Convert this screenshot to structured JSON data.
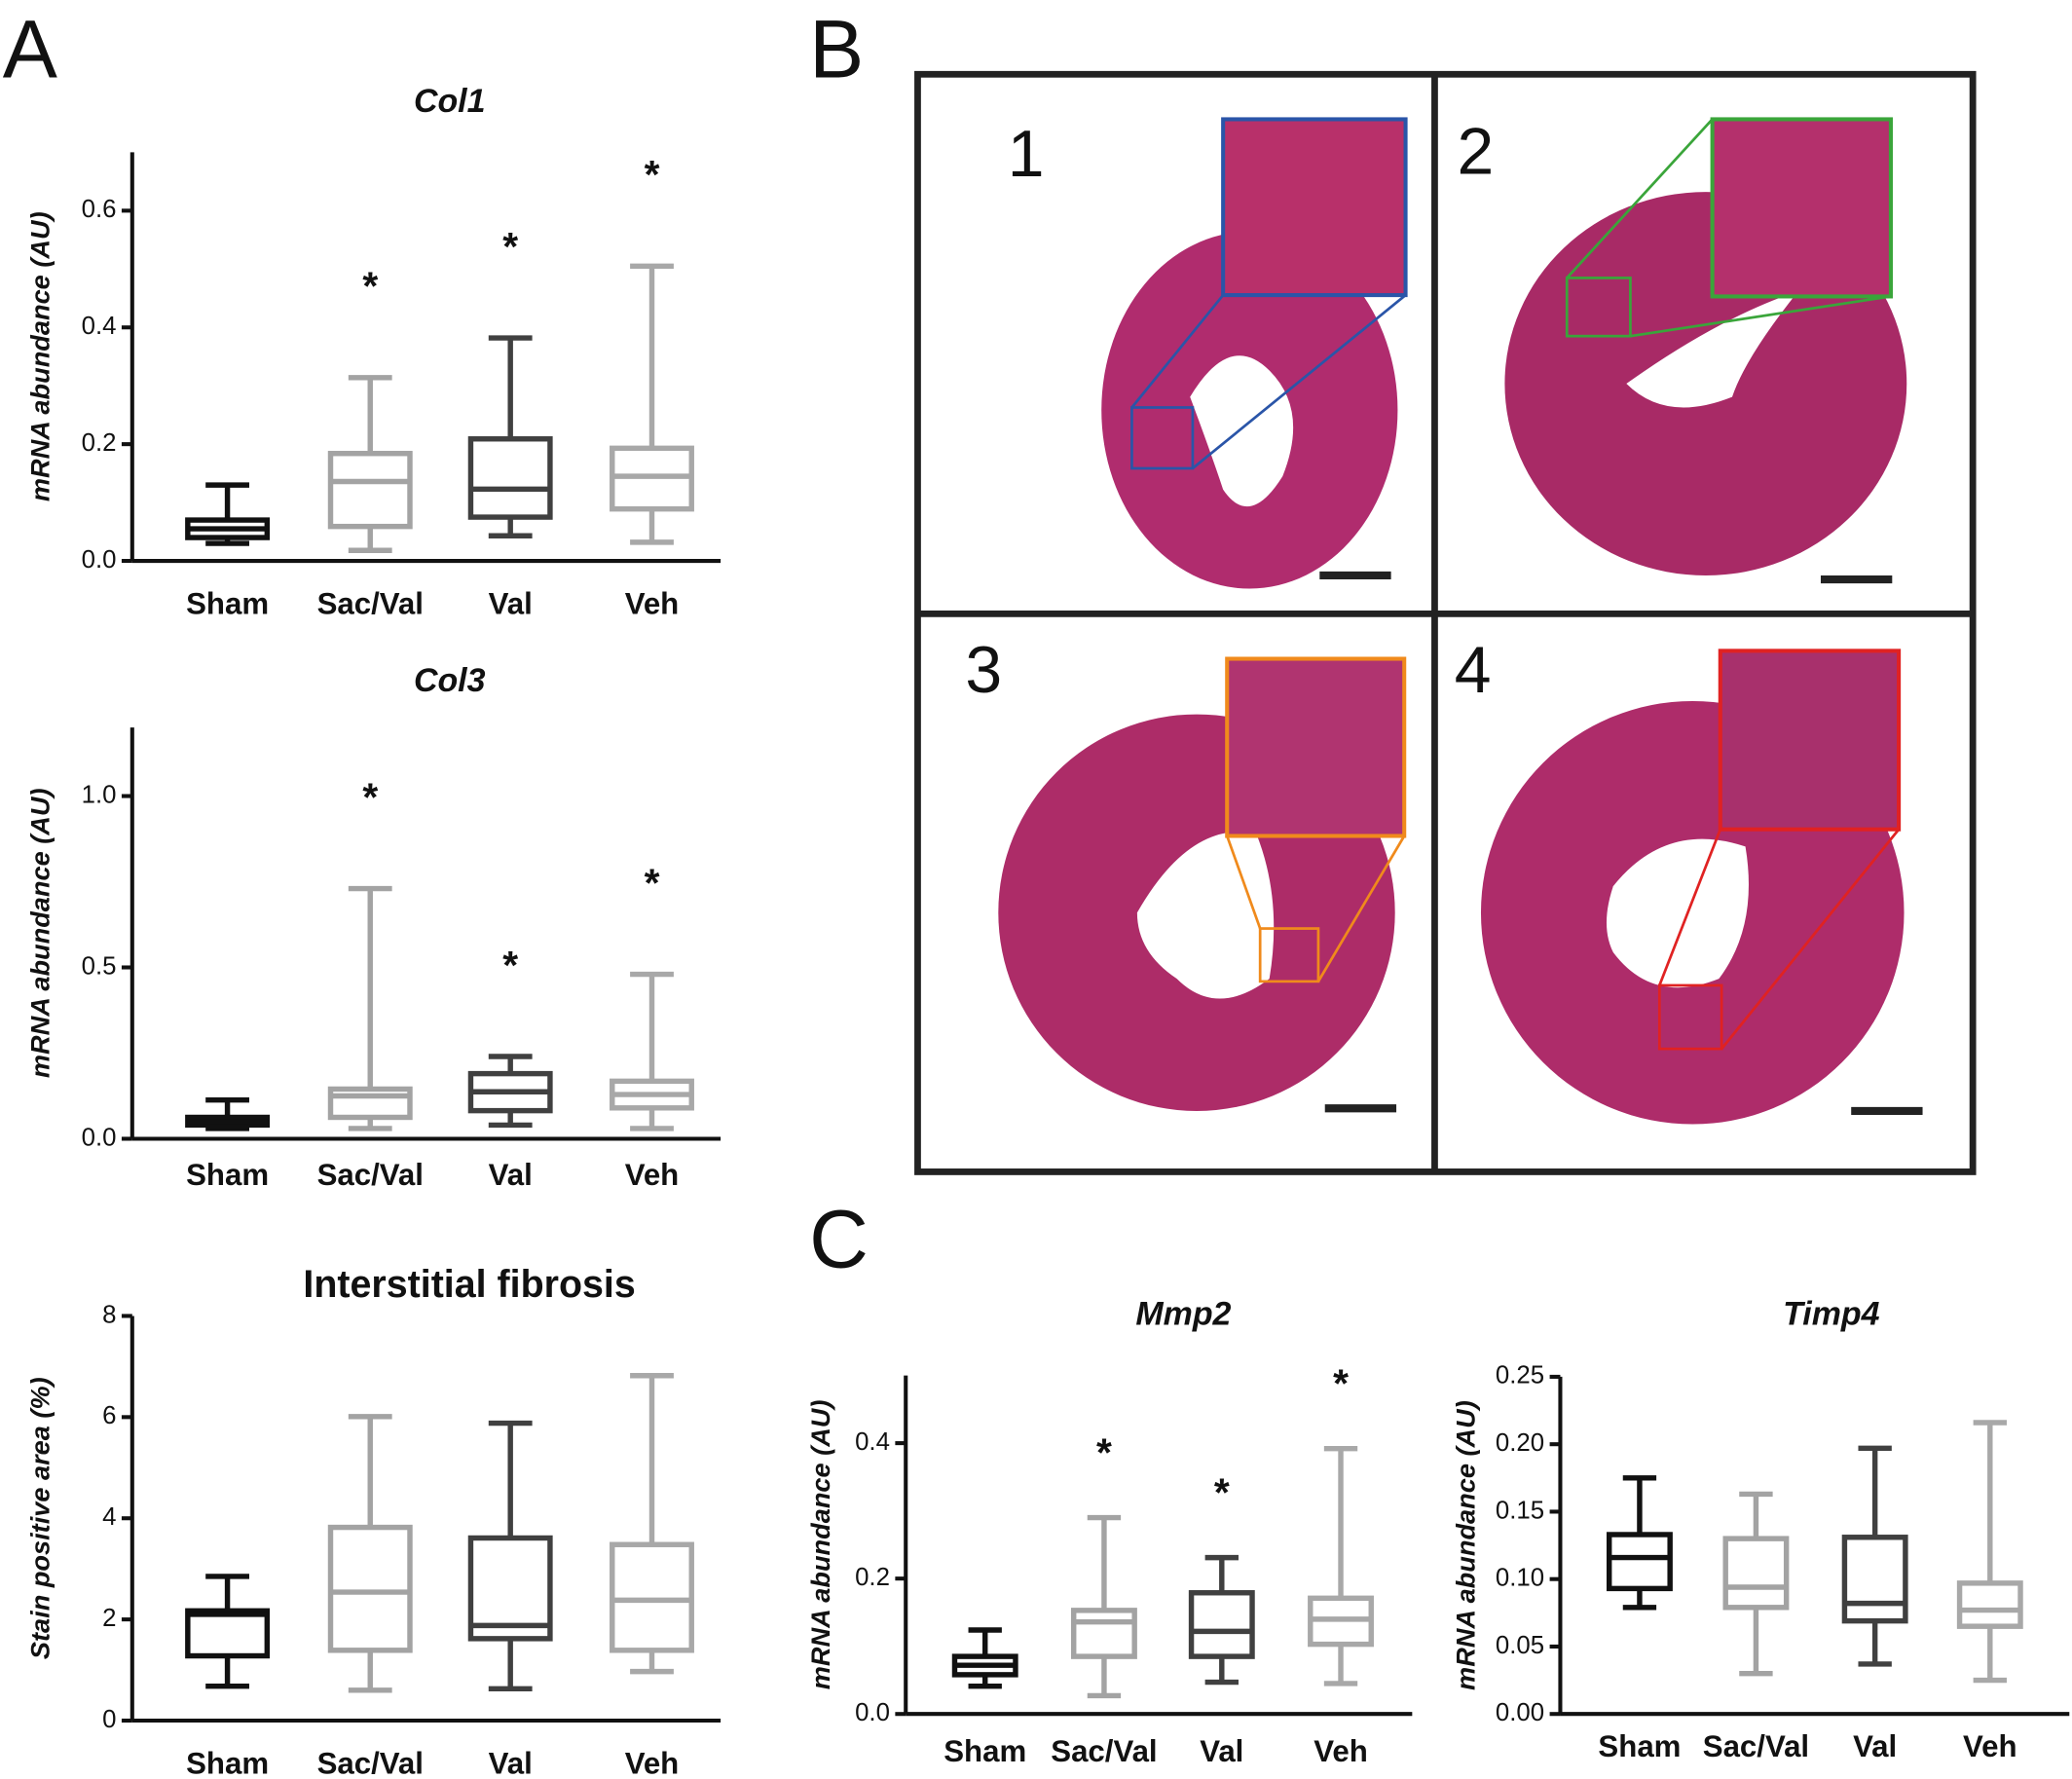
{
  "panel_labels": [
    "A",
    "B",
    "C"
  ],
  "image_labels": [
    "1",
    "2",
    "3",
    "4"
  ],
  "chart_data": [
    {
      "type": "box",
      "title": "Col1",
      "y_label": "mRNA abundance (AU)",
      "categories": [
        "Sham",
        "Sac/Val",
        "Val",
        "Veh"
      ],
      "colors": [
        "#111111",
        "#a3a3a3",
        "#404040",
        "#a8a8a8"
      ],
      "boxes": [
        {
          "min": 0.03,
          "q1": 0.04,
          "median": 0.055,
          "q3": 0.07,
          "max": 0.13
        },
        {
          "min": 0.018,
          "q1": 0.059,
          "median": 0.136,
          "q3": 0.184,
          "max": 0.314
        },
        {
          "min": 0.043,
          "q1": 0.075,
          "median": 0.123,
          "q3": 0.209,
          "max": 0.382
        },
        {
          "min": 0.032,
          "q1": 0.089,
          "median": 0.145,
          "q3": 0.193,
          "max": 0.505
        }
      ],
      "significance": [
        null,
        "*",
        "*",
        "*"
      ],
      "ylim": [
        0,
        0.7
      ],
      "yticks": [
        {
          "value": 0,
          "label": "0.0"
        },
        0.2,
        0.4,
        0.6
      ]
    },
    {
      "type": "box",
      "title": "Col3",
      "y_label": "mRNA abundance (AU)",
      "categories": [
        "Sham",
        "Sac/Val",
        "Val",
        "Veh"
      ],
      "colors": [
        "#111111",
        "#a3a3a3",
        "#404040",
        "#a8a8a8"
      ],
      "boxes": [
        {
          "min": 0.03,
          "q1": 0.04,
          "median": 0.05,
          "q3": 0.0625,
          "max": 0.113
        },
        {
          "min": 0.03,
          "q1": 0.0625,
          "median": 0.125,
          "q3": 0.145,
          "max": 0.73
        },
        {
          "min": 0.04,
          "q1": 0.082,
          "median": 0.137,
          "q3": 0.19,
          "max": 0.24
        },
        {
          "min": 0.03,
          "q1": 0.09,
          "median": 0.129,
          "q3": 0.168,
          "max": 0.48
        }
      ],
      "significance": [
        null,
        "*",
        "*",
        "*"
      ],
      "ylim": [
        0,
        1.2
      ],
      "yticks": [
        {
          "value": 0,
          "label": "0.0"
        },
        0.5,
        {
          "value": 1,
          "label": "1.0"
        }
      ]
    },
    {
      "type": "box",
      "title": "Interstitial fibrosis",
      "y_label": "Stain positive area (%)",
      "categories": [
        "Sham",
        "Sac/Val",
        "Val",
        "Veh"
      ],
      "colors": [
        "#111111",
        "#a3a3a3",
        "#404040",
        "#a8a8a8"
      ],
      "boxes": [
        {
          "min": 0.68,
          "q1": 1.28,
          "median": 2.1,
          "q3": 2.17,
          "max": 2.85
        },
        {
          "min": 0.6,
          "q1": 1.39,
          "median": 2.54,
          "q3": 3.82,
          "max": 6.01
        },
        {
          "min": 0.63,
          "q1": 1.62,
          "median": 1.88,
          "q3": 3.61,
          "max": 5.88
        },
        {
          "min": 0.97,
          "q1": 1.39,
          "median": 2.38,
          "q3": 3.48,
          "max": 6.82
        }
      ],
      "ylim": [
        0,
        8
      ],
      "yticks": [
        0,
        2,
        4,
        6,
        8
      ]
    },
    {
      "type": "box",
      "title": "Mmp2",
      "y_label": "mRNA abundance (AU)",
      "categories": [
        "Sham",
        "Sac/Val",
        "Val",
        "Veh"
      ],
      "colors": [
        "#111111",
        "#a3a3a3",
        "#404040",
        "#a8a8a8"
      ],
      "boxes": [
        {
          "min": 0.041,
          "q1": 0.058,
          "median": 0.072,
          "q3": 0.085,
          "max": 0.124
        },
        {
          "min": 0.027,
          "q1": 0.085,
          "median": 0.136,
          "q3": 0.153,
          "max": 0.29
        },
        {
          "min": 0.047,
          "q1": 0.085,
          "median": 0.122,
          "q3": 0.179,
          "max": 0.231
        },
        {
          "min": 0.045,
          "q1": 0.103,
          "median": 0.14,
          "q3": 0.171,
          "max": 0.392
        }
      ],
      "significance": [
        null,
        "*",
        "*",
        "*"
      ],
      "ylim": [
        0,
        0.5
      ],
      "yticks": [
        {
          "value": 0,
          "label": "0.0"
        },
        0.2,
        0.4
      ]
    },
    {
      "type": "box",
      "title": "Timp4",
      "y_label": "mRNA abundance (AU)",
      "categories": [
        "Sham",
        "Sac/Val",
        "Val",
        "Veh"
      ],
      "colors": [
        "#111111",
        "#a3a3a3",
        "#404040",
        "#a8a8a8"
      ],
      "boxes": [
        {
          "min": 0.079,
          "q1": 0.093,
          "median": 0.116,
          "q3": 0.133,
          "max": 0.175
        },
        {
          "min": 0.03,
          "q1": 0.079,
          "median": 0.094,
          "q3": 0.13,
          "max": 0.163
        },
        {
          "min": 0.037,
          "q1": 0.069,
          "median": 0.082,
          "q3": 0.131,
          "max": 0.197
        },
        {
          "min": 0.025,
          "q1": 0.065,
          "median": 0.077,
          "q3": 0.097,
          "max": 0.216
        }
      ],
      "ylim": [
        0,
        0.25
      ],
      "yticks": [
        {
          "value": 0,
          "label": "0.00"
        },
        0.05,
        {
          "value": 0.1,
          "label": "0.10"
        },
        0.15,
        {
          "value": 0.2,
          "label": "0.20"
        },
        0.25
      ]
    }
  ]
}
